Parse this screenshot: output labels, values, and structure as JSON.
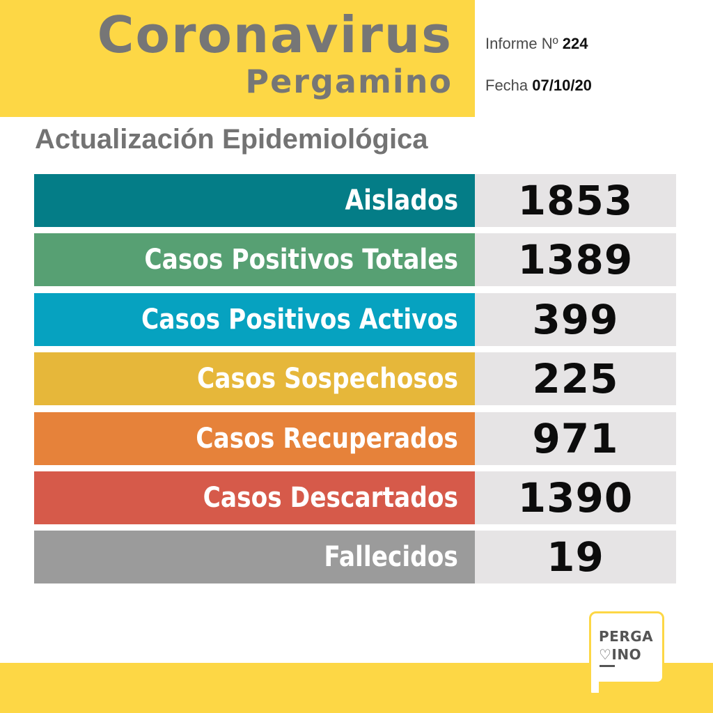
{
  "header": {
    "title": "Coronavirus",
    "subtitle": "Pergamino",
    "informe_label": "Informe Nº",
    "informe_number": "224",
    "fecha_label": "Fecha",
    "fecha_value": "07/10/20"
  },
  "section_heading": "Actualización Epidemiológica",
  "rows": [
    {
      "label": "Aislados",
      "value": "1853",
      "color": "#047d87"
    },
    {
      "label": "Casos Positivos Totales",
      "value": "1389",
      "color": "#57a073"
    },
    {
      "label": "Casos Positivos Activos",
      "value": "399",
      "color": "#06a2c0"
    },
    {
      "label": "Casos Sospechosos",
      "value": "225",
      "color": "#e6b73a"
    },
    {
      "label": "Casos Recuperados",
      "value": "971",
      "color": "#e6823a"
    },
    {
      "label": "Casos Descartados",
      "value": "1390",
      "color": "#d65a4a"
    },
    {
      "label": "Fallecidos",
      "value": "19",
      "color": "#9b9b9b"
    }
  ],
  "logo": {
    "line1": "PERGA",
    "line2": "♡INO"
  },
  "colors": {
    "yellow": "#fdd745",
    "value_bg": "#e6e4e5",
    "heading_gray": "#737373"
  }
}
